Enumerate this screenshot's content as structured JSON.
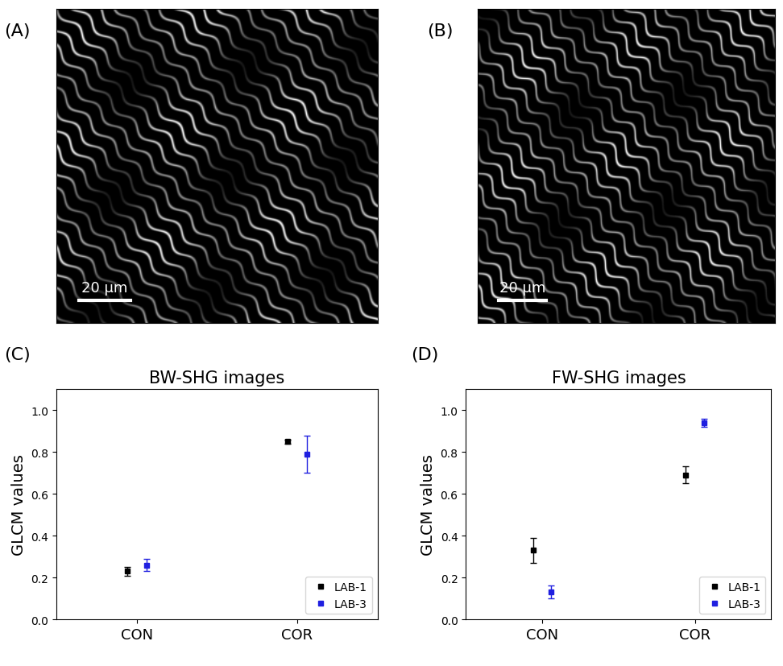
{
  "images": [
    {
      "panel_label": "(A)",
      "scale_bar": "20 µm"
    },
    {
      "panel_label": "(B)",
      "scale_bar": "20 µm"
    }
  ],
  "chart_data": [
    {
      "type": "scatter",
      "panel_label": "(C)",
      "title": "BW-SHG images",
      "y_label": "GLCM values",
      "categories": [
        "CON",
        "COR"
      ],
      "ylim": [
        0.0,
        1.1
      ],
      "yticks": [
        0.0,
        0.2,
        0.4,
        0.6,
        0.8,
        1.0
      ],
      "legend": "lower right",
      "marker": "square",
      "series": [
        {
          "name": "LAB-1",
          "color": "#000000",
          "values": [
            0.23,
            0.85
          ],
          "errors": [
            0.02,
            0.01
          ]
        },
        {
          "name": "LAB-3",
          "color": "#1f1fe0",
          "values": [
            0.26,
            0.79
          ],
          "errors": [
            0.03,
            0.09
          ]
        }
      ]
    },
    {
      "type": "scatter",
      "panel_label": "(D)",
      "title": "FW-SHG images",
      "y_label": "GLCM values",
      "categories": [
        "CON",
        "COR"
      ],
      "ylim": [
        0.0,
        1.1
      ],
      "yticks": [
        0.0,
        0.2,
        0.4,
        0.6,
        0.8,
        1.0
      ],
      "legend": "lower right",
      "marker": "square",
      "series": [
        {
          "name": "LAB-1",
          "color": "#000000",
          "values": [
            0.33,
            0.69
          ],
          "errors": [
            0.06,
            0.04
          ]
        },
        {
          "name": "LAB-3",
          "color": "#1f1fe0",
          "values": [
            0.13,
            0.94
          ],
          "errors": [
            0.03,
            0.02
          ]
        }
      ]
    }
  ]
}
